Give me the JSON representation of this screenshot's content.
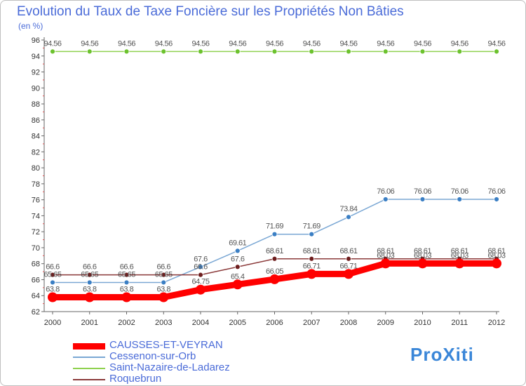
{
  "title": "Evolution du Taux de Taxe Foncière sur les Propriétés Non Bâties",
  "subtitle": "(en %)",
  "logo": "ProXiti",
  "colors": {
    "accent": "#4a6bd8"
  },
  "chart_data": {
    "type": "line",
    "title": "Evolution du Taux de Taxe Foncière sur les Propriétés Non Bâties",
    "ylabel": "(en %)",
    "xlabel": "",
    "categories": [
      "2000",
      "2001",
      "2002",
      "2003",
      "2004",
      "2005",
      "2006",
      "2007",
      "2008",
      "2009",
      "2010",
      "2011",
      "2012"
    ],
    "ylim": [
      62,
      96
    ],
    "yticks": [
      62,
      64,
      66,
      68,
      70,
      72,
      74,
      76,
      78,
      80,
      82,
      84,
      86,
      88,
      90,
      92,
      94,
      96
    ],
    "grid": false,
    "legend_position": "bottom-left",
    "series": [
      {
        "name": "CAUSSES-ET-VEYRAN",
        "color": "#ff0000",
        "marker": "#ff0000",
        "width": 9,
        "marker_r": 7,
        "values": [
          63.8,
          63.8,
          63.8,
          63.8,
          64.75,
          65.4,
          66.05,
          66.71,
          66.71,
          68.03,
          68.03,
          68.03,
          68.03
        ],
        "labels": [
          "63.8",
          "63.8",
          "63.8",
          "63.8",
          "64.75",
          "65.4",
          "66.05",
          "66.71",
          "66.71",
          "68.03",
          "68.03",
          "68.03",
          "68.03"
        ]
      },
      {
        "name": "Cessenon-sur-Orb",
        "color": "#7aa7d4",
        "marker": "#3b7fc4",
        "width": 1.5,
        "marker_r": 3.5,
        "values": [
          65.65,
          65.65,
          65.65,
          65.65,
          67.6,
          69.61,
          71.69,
          71.69,
          73.84,
          76.06,
          76.06,
          76.06,
          76.06
        ],
        "labels": [
          "65.65",
          "65.65",
          "65.65",
          "65.65",
          "67.6",
          "69.61",
          "71.69",
          "71.69",
          "73.84",
          "76.06",
          "76.06",
          "76.06",
          "76.06"
        ]
      },
      {
        "name": "Saint-Nazaire-de-Ladarez",
        "color": "#8fd14f",
        "marker": "#6cc22e",
        "width": 1.5,
        "marker_r": 3.5,
        "values": [
          94.56,
          94.56,
          94.56,
          94.56,
          94.56,
          94.56,
          94.56,
          94.56,
          94.56,
          94.56,
          94.56,
          94.56,
          94.56
        ],
        "labels": [
          "94.56",
          "94.56",
          "94.56",
          "94.56",
          "94.56",
          "94.56",
          "94.56",
          "94.56",
          "94.56",
          "94.56",
          "94.56",
          "94.56",
          "94.56"
        ]
      },
      {
        "name": "Roquebrun",
        "color": "#8b3a3a",
        "marker": "#6e1e1e",
        "width": 1.5,
        "marker_r": 3.5,
        "values": [
          66.6,
          66.6,
          66.6,
          66.6,
          66.6,
          67.6,
          68.61,
          68.61,
          68.61,
          68.61,
          68.61,
          68.61,
          68.61
        ],
        "labels": [
          "66.6",
          "66.6",
          "66.6",
          "66.6",
          "66.6",
          "67.6",
          "68.61",
          "68.61",
          "68.61",
          "68.61",
          "68.61",
          "68.61",
          "68.61"
        ]
      }
    ]
  }
}
